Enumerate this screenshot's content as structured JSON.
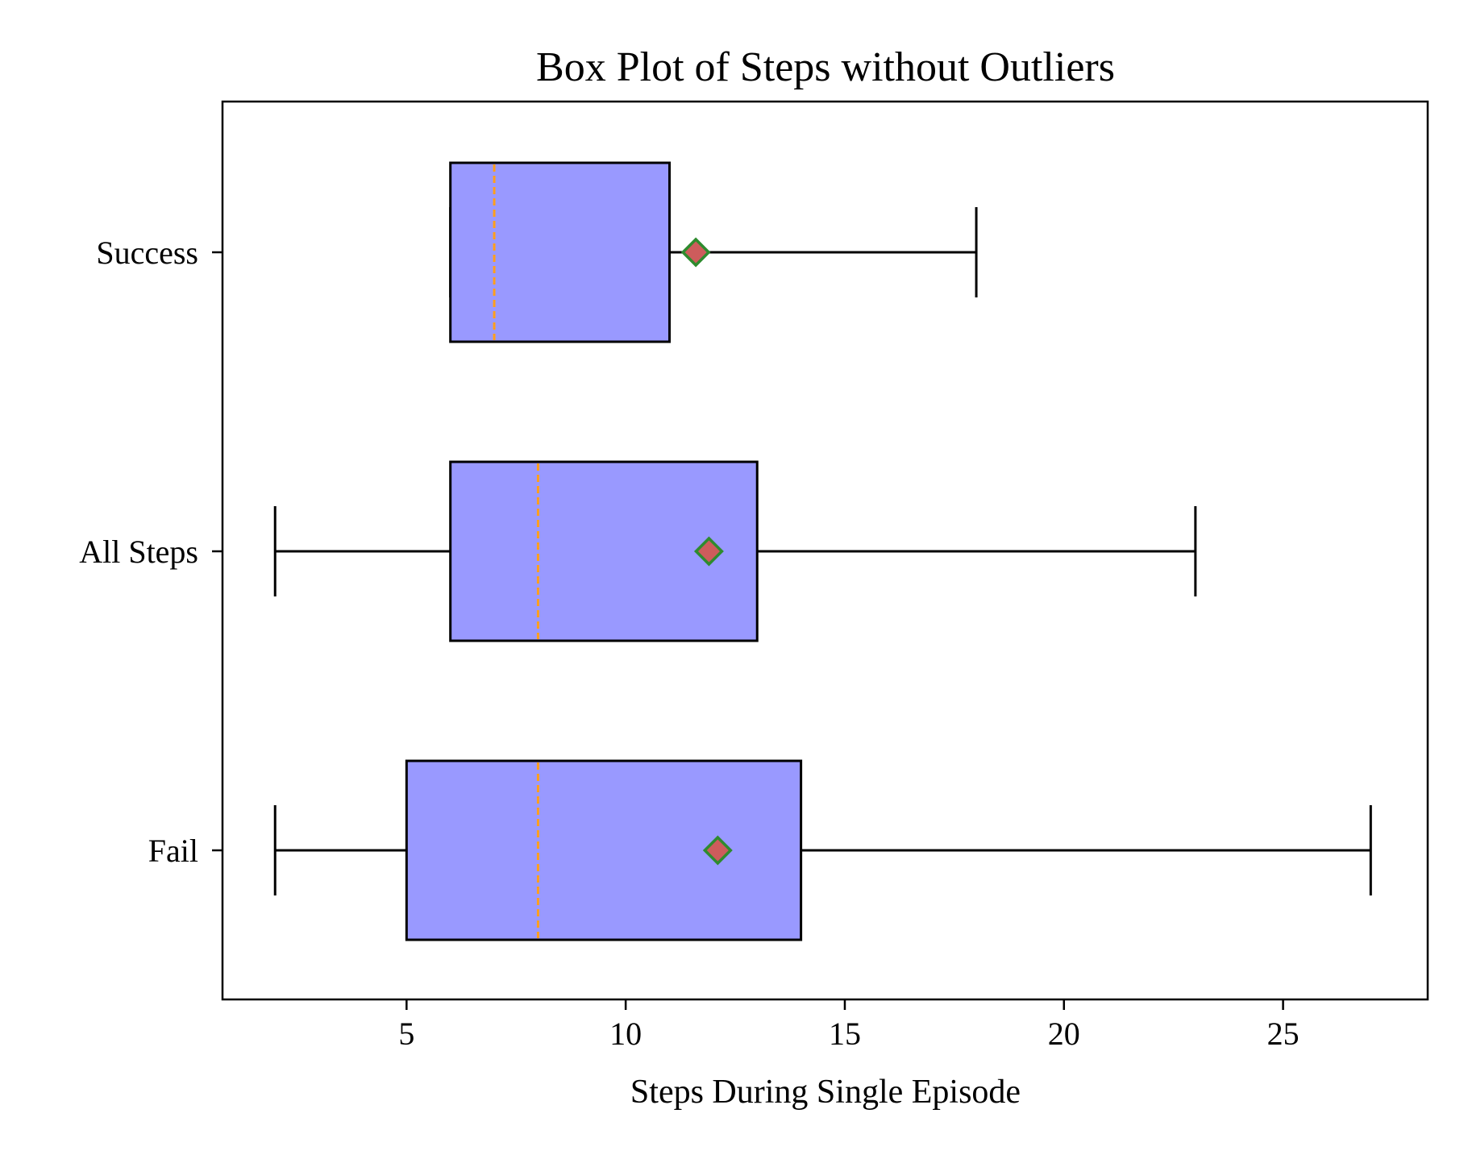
{
  "chart_data": {
    "type": "box",
    "orientation": "horizontal",
    "title": "Box Plot of Steps without Outliers",
    "xlabel": "Steps During Single Episode",
    "ylabel": "",
    "xlim": [
      0.8,
      28.3
    ],
    "xticks": [
      5,
      10,
      15,
      20,
      25
    ],
    "grid": false,
    "categories": [
      "Success",
      "All Steps",
      "Fail"
    ],
    "boxes": [
      {
        "category": "Success",
        "whisker_low": 6,
        "q1": 6,
        "median": 7,
        "q3": 11,
        "whisker_high": 18,
        "mean": 11.6
      },
      {
        "category": "All Steps",
        "whisker_low": 2,
        "q1": 6,
        "median": 8,
        "q3": 13,
        "whisker_high": 23,
        "mean": 11.9
      },
      {
        "category": "Fail",
        "whisker_low": 2,
        "q1": 5,
        "median": 8,
        "q3": 14,
        "whisker_high": 27,
        "mean": 12.1
      }
    ],
    "colors": {
      "box_fill": "#9999ff",
      "box_edge": "#000000",
      "median": "#ff9f1c",
      "mean_fill": "#cd5c5c",
      "mean_edge": "#2e8b2e",
      "whisker": "#000000",
      "axes": "#000000"
    },
    "median_style": "dashed",
    "mean_marker": "diamond"
  }
}
